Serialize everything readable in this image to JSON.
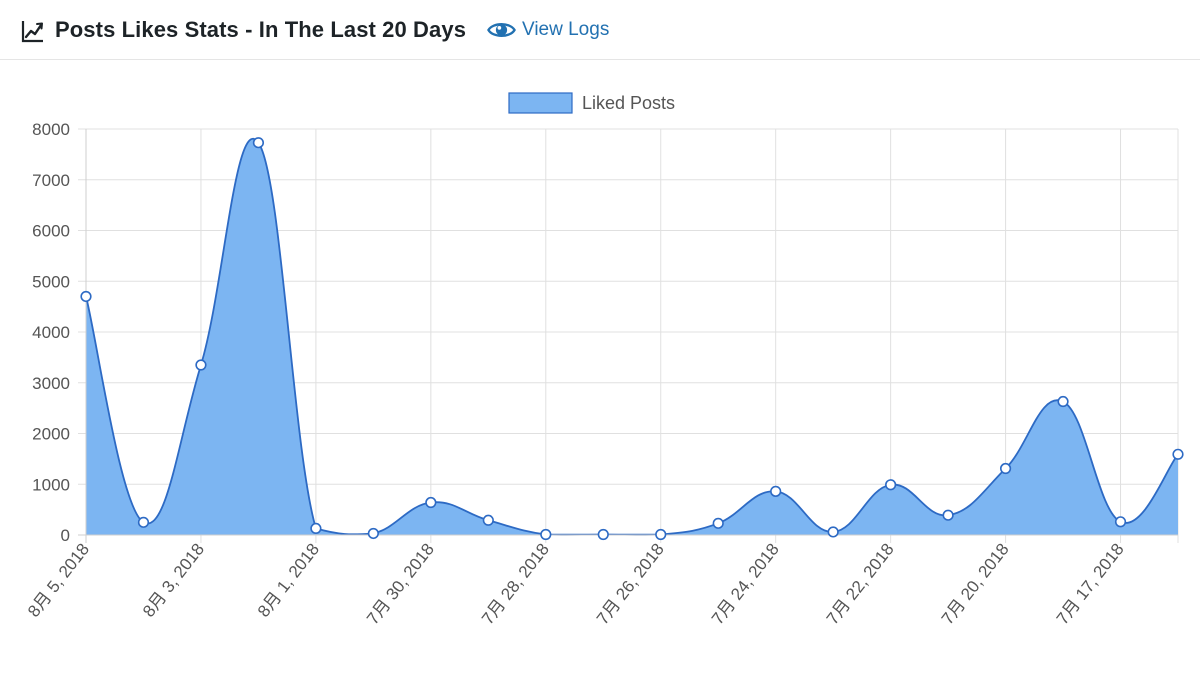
{
  "header": {
    "title": "Posts Likes Stats - In The Last 20 Days",
    "view_logs_label": "View Logs",
    "title_icon": "chart-line-icon",
    "link_icon": "eye-icon"
  },
  "colors": {
    "fill": "#7cb5f2",
    "line": "#2d6ac4",
    "grid": "#e0e0e0",
    "tick_text": "#555555",
    "link": "#2271b1"
  },
  "chart_data": {
    "type": "area",
    "legend_position": "top-center",
    "grid": true,
    "ylim": [
      0,
      8000
    ],
    "yticks": [
      0,
      1000,
      2000,
      3000,
      4000,
      5000,
      6000,
      7000,
      8000
    ],
    "x_tick_labels": [
      "8月 5, 2018",
      "8月 3, 2018",
      "8月 1, 2018",
      "7月 30, 2018",
      "7月 28, 2018",
      "7月 26, 2018",
      "7月 24, 2018",
      "7月 22, 2018",
      "7月 20, 2018",
      "7月 17, 2018"
    ],
    "series": [
      {
        "name": "Liked Posts",
        "values": [
          4700,
          250,
          3350,
          7730,
          130,
          30,
          640,
          290,
          10,
          10,
          10,
          230,
          860,
          60,
          990,
          390,
          1310,
          2630,
          260,
          1590
        ]
      }
    ]
  }
}
